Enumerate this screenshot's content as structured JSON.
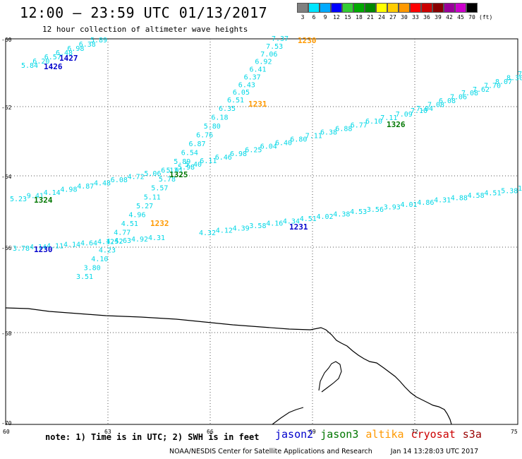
{
  "header": {
    "title": "12:00 – 23:59 UTC 01/13/2017",
    "subtitle": "12 hour collection of altimeter wave heights"
  },
  "legend": {
    "values": [
      "3",
      "6",
      "9",
      "12",
      "15",
      "18",
      "21",
      "24",
      "27",
      "30",
      "33",
      "36",
      "39",
      "42",
      "45",
      "70"
    ],
    "colors": [
      "#808080",
      "#00e5ff",
      "#00aaff",
      "#0000ff",
      "#33cc33",
      "#00aa00",
      "#008800",
      "#ffff00",
      "#ffcc00",
      "#ff9900",
      "#ff0000",
      "#cc0000",
      "#880000",
      "#990099",
      "#cc00cc",
      "#000000"
    ],
    "unit": "(ft)"
  },
  "map": {
    "lat_ticks": [
      "-60",
      "-62",
      "-64",
      "-66",
      "-68",
      "-70"
    ],
    "lon_ticks": [
      "60",
      "63",
      "66",
      "69",
      "72",
      "75"
    ]
  },
  "colors": {
    "swh": "#00d7e6",
    "jason2": "#0000cc",
    "jason3": "#007700",
    "altika": "#ff9900",
    "cryosat": "#cc0000",
    "s3a": "#990000"
  },
  "tracks": [
    {
      "satellite": "jason2",
      "time": "1426",
      "values": [
        "5.84",
        "6.20",
        "6.57",
        "6.48",
        "6.98",
        "6.38",
        "5.89"
      ]
    },
    {
      "satellite": "jason2",
      "time": "1427",
      "values": []
    },
    {
      "satellite": "altika",
      "time": "1230",
      "values": [
        "7.37",
        "7.53",
        "7.06",
        "6.92",
        "6.41",
        "6.37",
        "6.43",
        "6.05",
        "6.51"
      ]
    },
    {
      "satellite": "altika",
      "time": "1231",
      "values": [
        "6.35",
        "6.18",
        "5.80",
        "6.76",
        "6.87",
        "6.54",
        "5.89",
        "5.61",
        "5.78",
        "5.57",
        "5.11",
        "5.27",
        "4.96",
        "4.51",
        "4.77",
        "4.52",
        "4.23",
        "4.10",
        "3.80",
        "3.51"
      ]
    },
    {
      "satellite": "altika",
      "time": "1232",
      "values": []
    },
    {
      "satellite": "jason3",
      "time": "1324",
      "values": [
        "5.23",
        "9.41",
        "4.14",
        "4.98",
        "4.87",
        "4.48",
        "6.08",
        "4.72",
        "5.06",
        "6.13",
        "5.98"
      ]
    },
    {
      "satellite": "jason3",
      "time": "1325",
      "values": [
        "5.40",
        "6.11",
        "6.46",
        "6.98",
        "6.25",
        "6.04",
        "6.40",
        "6.80",
        "7.11",
        "6.38",
        "6.88",
        "6.77",
        "6.10",
        "7.11",
        "7.09",
        "7.10"
      ]
    },
    {
      "satellite": "jason3",
      "time": "1326",
      "values": [
        "7.04",
        "7.08",
        "6.08",
        "7.06",
        "7.08",
        "7.62",
        "7.70",
        "8.07",
        "8.30",
        "7"
      ]
    },
    {
      "satellite": "jason2",
      "time": "1230",
      "values": [
        "3.78",
        "4.14",
        "4.11",
        "4.14",
        "4.64",
        "4.12",
        "4.63",
        "4.92",
        "4.31"
      ]
    },
    {
      "satellite": "jason2",
      "time": "1231",
      "values": [
        "4.32",
        "4.12",
        "4.39",
        "3.58",
        "4.16",
        "4.34",
        "4.51",
        "4.02",
        "4.38",
        "4.53",
        "3.56",
        "3.93",
        "4.01",
        "4.86",
        "4.31",
        "4.88",
        "4.58",
        "4.51",
        "5.38",
        "13"
      ]
    }
  ],
  "footer": {
    "note": "note: 1) Time is in UTC; 2) SWH is in feet",
    "satellites": [
      "jason2",
      "jason3",
      "altika",
      "cryosat",
      "s3a"
    ],
    "credit": "NOAA/NESDIS Center for Satellite Applications and Research",
    "generated": "Jan 14 13:28:03 UTC 2017"
  }
}
